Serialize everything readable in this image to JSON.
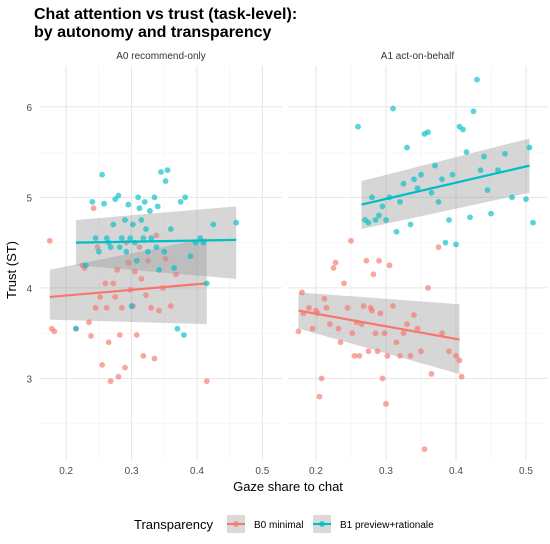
{
  "chart_data": {
    "type": "scatter",
    "title": "Chat attention vs trust (task-level):",
    "subtitle": "by autonomy and transparency",
    "xlabel": "Gaze share to chat",
    "ylabel": "Trust (ST)",
    "xlim": [
      0.16,
      0.53
    ],
    "ylim": [
      2.1,
      6.45
    ],
    "x_ticks": [
      0.2,
      0.3,
      0.4,
      0.5
    ],
    "x_tick_labels": [
      "0.2",
      "0.3",
      "0.4",
      "0.5"
    ],
    "y_ticks": [
      3,
      4,
      5,
      6
    ],
    "y_tick_labels": [
      "3",
      "4",
      "5",
      "6"
    ],
    "grid": true,
    "legend": {
      "title": "Transparency",
      "position": "bottom",
      "items": [
        {
          "key": "B0",
          "label": "B0 minimal",
          "color": "#F8766D"
        },
        {
          "key": "B1",
          "label": "B1 preview+rationale",
          "color": "#00BFC4"
        }
      ]
    },
    "panels": [
      {
        "title": "A0 recommend-only",
        "series": [
          {
            "key": "B0",
            "points": [
              [
                0.175,
                4.52
              ],
              [
                0.178,
                3.55
              ],
              [
                0.182,
                3.52
              ],
              [
                0.215,
                3.55
              ],
              [
                0.225,
                4.25
              ],
              [
                0.228,
                4.22
              ],
              [
                0.235,
                3.62
              ],
              [
                0.238,
                3.47
              ],
              [
                0.242,
                4.88
              ],
              [
                0.245,
                3.78
              ],
              [
                0.248,
                4.45
              ],
              [
                0.252,
                3.9
              ],
              [
                0.255,
                3.15
              ],
              [
                0.26,
                4.05
              ],
              [
                0.262,
                3.78
              ],
              [
                0.265,
                3.4
              ],
              [
                0.268,
                2.97
              ],
              [
                0.272,
                4.05
              ],
              [
                0.275,
                3.9
              ],
              [
                0.278,
                4.2
              ],
              [
                0.28,
                3.02
              ],
              [
                0.282,
                3.48
              ],
              [
                0.285,
                3.78
              ],
              [
                0.29,
                3.12
              ],
              [
                0.292,
                4.5
              ],
              [
                0.295,
                4.28
              ],
              [
                0.298,
                3.98
              ],
              [
                0.302,
                3.8
              ],
              [
                0.305,
                4.18
              ],
              [
                0.308,
                3.48
              ],
              [
                0.312,
                4.45
              ],
              [
                0.315,
                4.1
              ],
              [
                0.318,
                3.25
              ],
              [
                0.322,
                3.92
              ],
              [
                0.325,
                4.3
              ],
              [
                0.33,
                3.78
              ],
              [
                0.335,
                3.22
              ],
              [
                0.338,
                4.58
              ],
              [
                0.342,
                3.75
              ],
              [
                0.348,
                4.0
              ],
              [
                0.352,
                4.32
              ],
              [
                0.36,
                3.8
              ],
              [
                0.368,
                4.15
              ],
              [
                0.415,
                2.97
              ]
            ],
            "fit": {
              "x": [
                0.175,
                0.415
              ],
              "y": [
                3.9,
                4.05
              ]
            },
            "band_lower": [
              3.65,
              3.6
            ],
            "band_upper": [
              4.2,
              4.55
            ]
          },
          {
            "key": "B1",
            "points": [
              [
                0.215,
                3.55
              ],
              [
                0.23,
                4.25
              ],
              [
                0.24,
                4.95
              ],
              [
                0.245,
                4.55
              ],
              [
                0.25,
                4.4
              ],
              [
                0.255,
                5.25
              ],
              [
                0.258,
                4.93
              ],
              [
                0.262,
                4.55
              ],
              [
                0.265,
                4.5
              ],
              [
                0.268,
                4.45
              ],
              [
                0.272,
                4.7
              ],
              [
                0.275,
                4.98
              ],
              [
                0.28,
                5.02
              ],
              [
                0.282,
                4.45
              ],
              [
                0.285,
                4.55
              ],
              [
                0.29,
                4.75
              ],
              [
                0.292,
                4.4
              ],
              [
                0.295,
                4.92
              ],
              [
                0.298,
                4.55
              ],
              [
                0.3,
                3.8
              ],
              [
                0.302,
                4.7
              ],
              [
                0.305,
                4.5
              ],
              [
                0.308,
                4.3
              ],
              [
                0.31,
                5.0
              ],
              [
                0.312,
                4.88
              ],
              [
                0.315,
                4.75
              ],
              [
                0.318,
                4.55
              ],
              [
                0.32,
                4.95
              ],
              [
                0.322,
                4.65
              ],
              [
                0.325,
                4.4
              ],
              [
                0.328,
                4.85
              ],
              [
                0.33,
                4.55
              ],
              [
                0.335,
                5.0
              ],
              [
                0.338,
                4.45
              ],
              [
                0.34,
                4.9
              ],
              [
                0.342,
                4.2
              ],
              [
                0.345,
                5.28
              ],
              [
                0.35,
                4.4
              ],
              [
                0.352,
                5.18
              ],
              [
                0.355,
                5.3
              ],
              [
                0.36,
                4.65
              ],
              [
                0.365,
                4.22
              ],
              [
                0.37,
                3.55
              ],
              [
                0.375,
                4.95
              ],
              [
                0.38,
                3.48
              ],
              [
                0.382,
                5.0
              ],
              [
                0.39,
                4.35
              ],
              [
                0.398,
                4.5
              ],
              [
                0.405,
                4.55
              ],
              [
                0.41,
                4.5
              ],
              [
                0.415,
                4.05
              ],
              [
                0.425,
                4.7
              ],
              [
                0.46,
                4.72
              ]
            ],
            "fit": {
              "x": [
                0.215,
                0.46
              ],
              "y": [
                4.5,
                4.53
              ]
            },
            "band_lower": [
              4.25,
              4.1
            ],
            "band_upper": [
              4.75,
              4.9
            ]
          }
        ]
      },
      {
        "title": "A1 act-on-behalf",
        "series": [
          {
            "key": "B0",
            "points": [
              [
                0.175,
                3.52
              ],
              [
                0.18,
                3.95
              ],
              [
                0.182,
                3.72
              ],
              [
                0.19,
                3.78
              ],
              [
                0.195,
                3.55
              ],
              [
                0.2,
                3.75
              ],
              [
                0.202,
                3.72
              ],
              [
                0.205,
                2.8
              ],
              [
                0.208,
                3.0
              ],
              [
                0.212,
                3.88
              ],
              [
                0.215,
                3.78
              ],
              [
                0.22,
                3.6
              ],
              [
                0.225,
                4.22
              ],
              [
                0.228,
                4.28
              ],
              [
                0.232,
                3.55
              ],
              [
                0.235,
                3.4
              ],
              [
                0.24,
                4.05
              ],
              [
                0.245,
                3.78
              ],
              [
                0.25,
                4.52
              ],
              [
                0.252,
                3.5
              ],
              [
                0.255,
                3.25
              ],
              [
                0.258,
                3.62
              ],
              [
                0.262,
                3.25
              ],
              [
                0.265,
                3.6
              ],
              [
                0.268,
                3.8
              ],
              [
                0.272,
                4.3
              ],
              [
                0.275,
                3.3
              ],
              [
                0.278,
                3.78
              ],
              [
                0.28,
                3.75
              ],
              [
                0.282,
                4.15
              ],
              [
                0.285,
                3.5
              ],
              [
                0.288,
                3.3
              ],
              [
                0.29,
                4.3
              ],
              [
                0.292,
                3.72
              ],
              [
                0.295,
                3.0
              ],
              [
                0.298,
                3.5
              ],
              [
                0.3,
                2.72
              ],
              [
                0.302,
                3.25
              ],
              [
                0.305,
                4.25
              ],
              [
                0.31,
                3.8
              ],
              [
                0.315,
                3.4
              ],
              [
                0.32,
                3.25
              ],
              [
                0.325,
                3.5
              ],
              [
                0.33,
                3.6
              ],
              [
                0.335,
                3.25
              ],
              [
                0.34,
                3.7
              ],
              [
                0.345,
                3.55
              ],
              [
                0.35,
                3.3
              ],
              [
                0.355,
                2.22
              ],
              [
                0.36,
                4.0
              ],
              [
                0.365,
                3.05
              ],
              [
                0.375,
                4.45
              ],
              [
                0.38,
                3.5
              ],
              [
                0.39,
                3.3
              ],
              [
                0.4,
                3.25
              ],
              [
                0.405,
                3.2
              ],
              [
                0.408,
                3.02
              ]
            ],
            "fit": {
              "x": [
                0.175,
                0.405
              ],
              "y": [
                3.75,
                3.43
              ]
            },
            "band_lower": [
              3.55,
              3.05
            ],
            "band_upper": [
              3.95,
              3.82
            ]
          },
          {
            "key": "B1",
            "points": [
              [
                0.26,
                5.78
              ],
              [
                0.27,
                4.75
              ],
              [
                0.275,
                4.72
              ],
              [
                0.28,
                5.0
              ],
              [
                0.285,
                4.75
              ],
              [
                0.29,
                4.8
              ],
              [
                0.295,
                4.9
              ],
              [
                0.3,
                4.75
              ],
              [
                0.305,
                5.0
              ],
              [
                0.31,
                5.98
              ],
              [
                0.315,
                4.62
              ],
              [
                0.32,
                4.95
              ],
              [
                0.325,
                5.15
              ],
              [
                0.33,
                5.55
              ],
              [
                0.335,
                4.7
              ],
              [
                0.34,
                5.2
              ],
              [
                0.345,
                5.1
              ],
              [
                0.35,
                5.25
              ],
              [
                0.355,
                5.7
              ],
              [
                0.36,
                5.72
              ],
              [
                0.365,
                5.05
              ],
              [
                0.37,
                5.35
              ],
              [
                0.375,
                4.95
              ],
              [
                0.38,
                5.2
              ],
              [
                0.385,
                4.5
              ],
              [
                0.39,
                4.75
              ],
              [
                0.395,
                5.25
              ],
              [
                0.4,
                4.48
              ],
              [
                0.405,
                5.78
              ],
              [
                0.41,
                5.75
              ],
              [
                0.415,
                5.5
              ],
              [
                0.42,
                4.78
              ],
              [
                0.425,
                5.95
              ],
              [
                0.43,
                6.3
              ],
              [
                0.435,
                5.3
              ],
              [
                0.44,
                5.45
              ],
              [
                0.445,
                5.08
              ],
              [
                0.45,
                4.82
              ],
              [
                0.46,
                5.3
              ],
              [
                0.47,
                5.48
              ],
              [
                0.48,
                5.0
              ],
              [
                0.5,
                4.98
              ],
              [
                0.505,
                5.55
              ],
              [
                0.51,
                4.72
              ]
            ],
            "fit": {
              "x": [
                0.265,
                0.505
              ],
              "y": [
                4.92,
                5.35
              ]
            },
            "band_lower": [
              4.65,
              5.05
            ],
            "band_upper": [
              5.18,
              5.65
            ]
          }
        ]
      }
    ]
  }
}
